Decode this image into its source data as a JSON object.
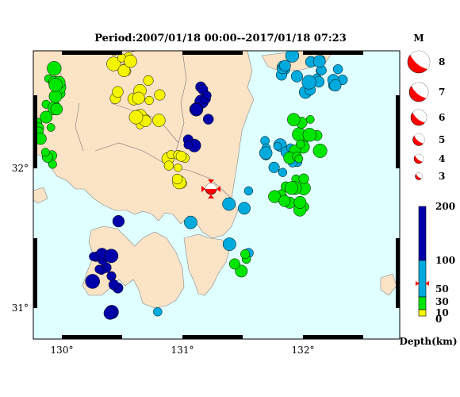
{
  "title": "Period:2007/01/18 00:00--2017/01/18 07:23",
  "map": {
    "lon_ticks": [
      "130°",
      "131°",
      "132°"
    ],
    "lat_ticks": [
      "32°",
      "31°"
    ],
    "land_color": "#fbe3c6",
    "sea_color": "#e0ffff"
  },
  "magnitude_legend": {
    "title": "M",
    "items": [
      "8",
      "7",
      "6",
      "5",
      "4",
      "3"
    ],
    "color": "#ff0000"
  },
  "depth_legend": {
    "title": "Depth(km)",
    "labels": [
      "200",
      "100",
      "50",
      "30",
      "10",
      "0"
    ],
    "colors": {
      "0-10": "#f5f500",
      "10-30": "#00e600",
      "30-100": "#00aadd",
      "100-200": "#0000aa"
    }
  },
  "main_event": {
    "color": "#ff0000",
    "marker": "target-marker"
  }
}
